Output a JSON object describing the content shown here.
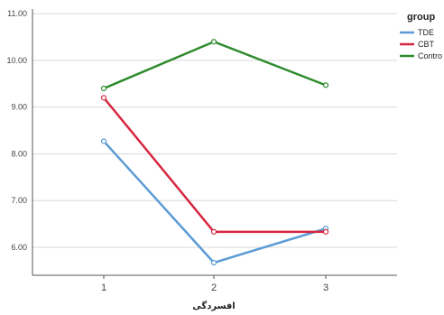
{
  "chart_data": {
    "type": "line",
    "title": "",
    "xlabel": "افسردگی",
    "ylabel": "",
    "categories": [
      "1",
      "2",
      "3"
    ],
    "ylim": [
      5.4,
      11.1
    ],
    "yticks": [
      "6.00",
      "7.00",
      "8.00",
      "9.00",
      "10.00",
      "11.00"
    ],
    "ytick_values": [
      6,
      7,
      8,
      9,
      10,
      11
    ],
    "grid": true,
    "legend": {
      "title": "group",
      "placement": "right"
    },
    "series": [
      {
        "name": "TDE",
        "color": "#5b9bd5",
        "values": [
          8.27,
          5.67,
          6.4
        ]
      },
      {
        "name": "CBT",
        "color": "#d6263f",
        "values": [
          9.2,
          6.33,
          6.33
        ]
      },
      {
        "name": "Contro",
        "color": "#2e8b2e",
        "values": [
          9.4,
          10.4,
          9.47
        ]
      }
    ]
  }
}
